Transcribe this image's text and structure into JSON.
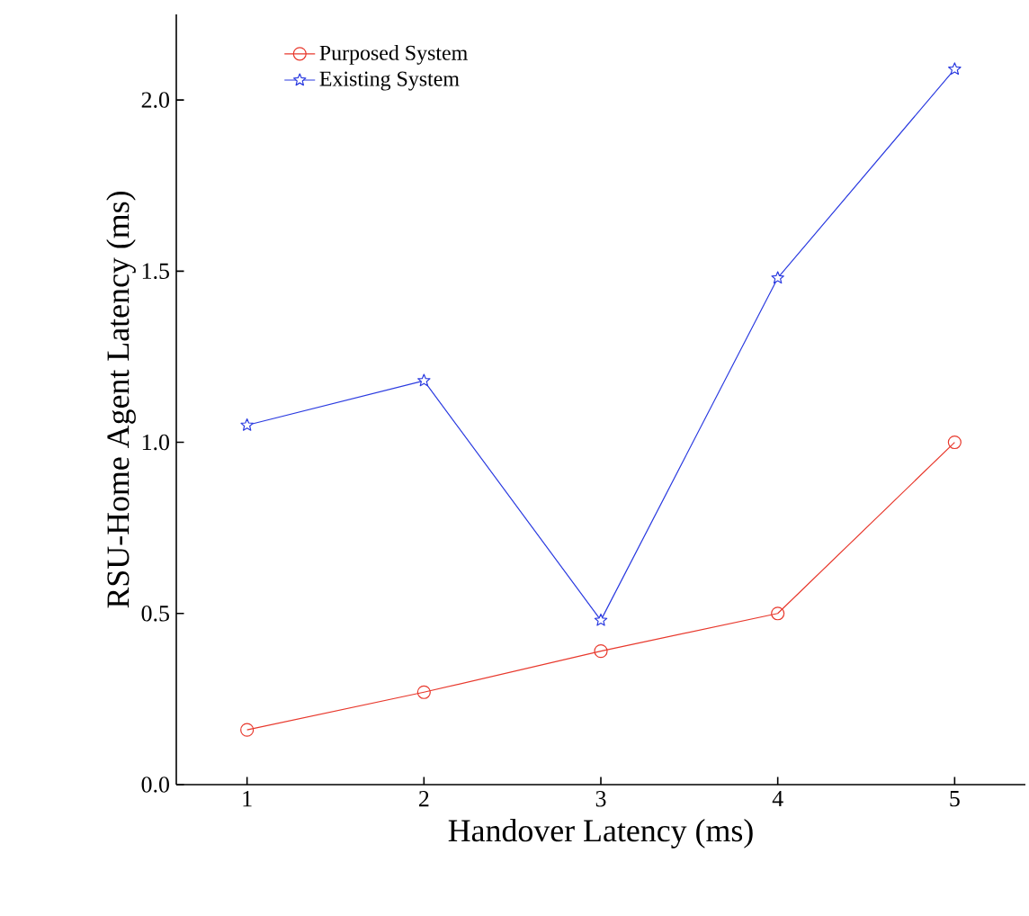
{
  "chart_data": {
    "type": "line",
    "xlabel": "Handover Latency (ms)",
    "ylabel": "RSU-Home Agent Latency (ms)",
    "x": [
      1,
      2,
      3,
      4,
      5
    ],
    "series": [
      {
        "name": "Purposed System",
        "color": "#e8382c",
        "marker": "circle",
        "values": [
          0.16,
          0.27,
          0.39,
          0.5,
          1.0
        ]
      },
      {
        "name": "Existing System",
        "color": "#2b3be0",
        "marker": "star",
        "values": [
          1.05,
          1.18,
          0.48,
          1.48,
          2.09
        ]
      }
    ],
    "xlim": [
      0.6,
      5.4
    ],
    "ylim": [
      0,
      2.25
    ],
    "xticks": [
      1,
      2,
      3,
      4,
      5
    ],
    "yticks": [
      {
        "value": 0,
        "label": "0.0"
      },
      {
        "value": 0.5,
        "label": "0.5"
      },
      {
        "value": 1,
        "label": "1.0"
      },
      {
        "value": 1.5,
        "label": "1.5"
      },
      {
        "value": 2,
        "label": "2.0"
      }
    ],
    "legend": "top left",
    "grid": false
  }
}
